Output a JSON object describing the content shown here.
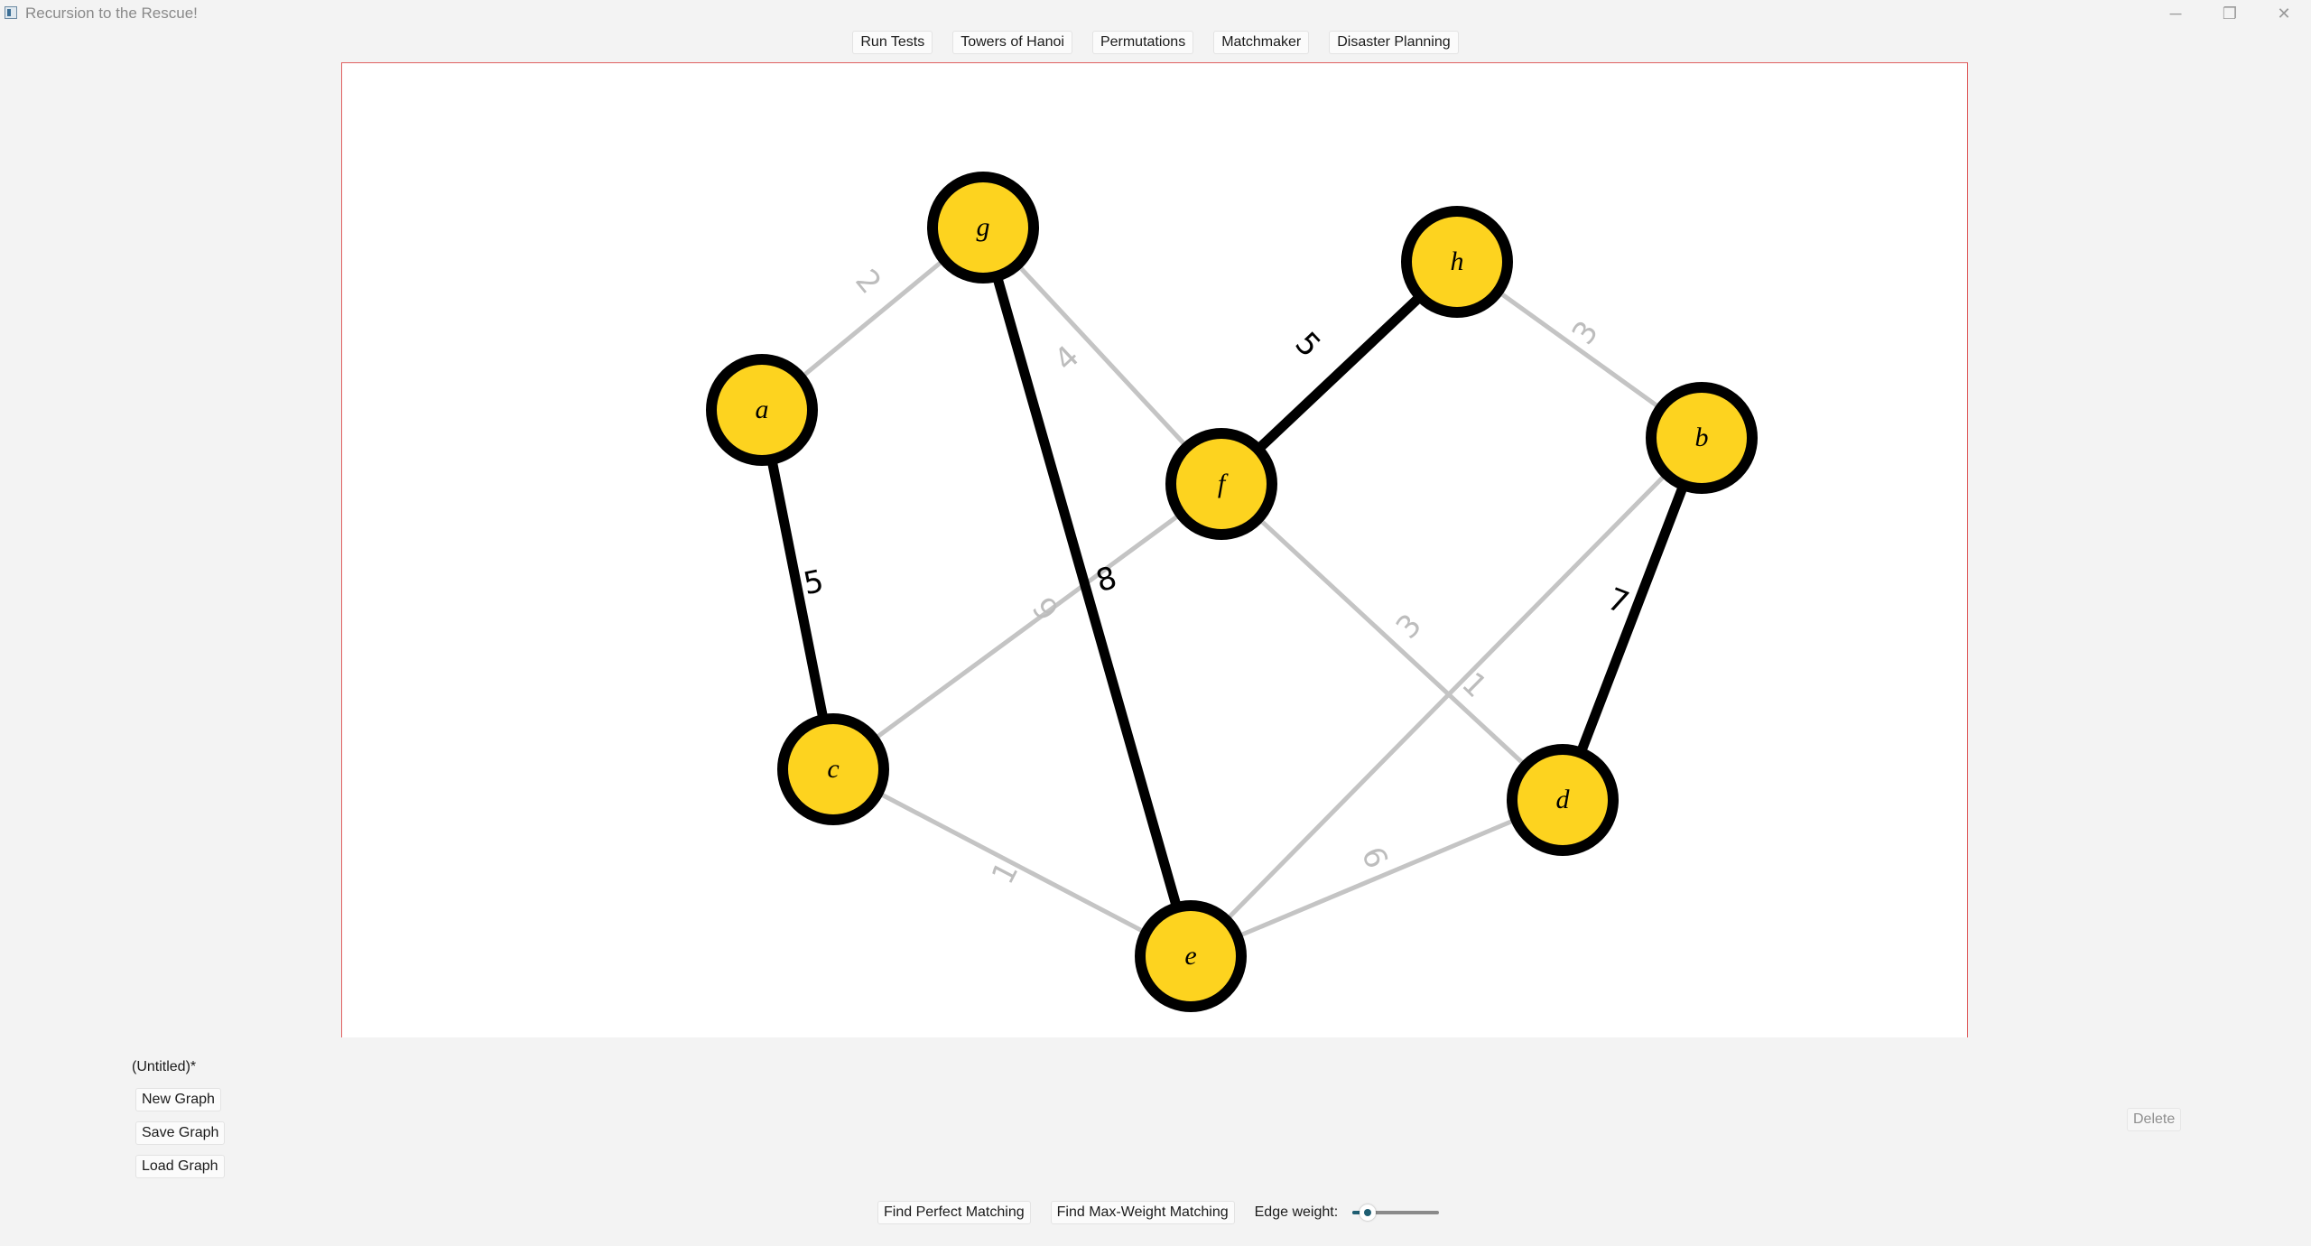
{
  "window": {
    "title": "Recursion to the Rescue!",
    "controls": {
      "minimize": "─",
      "restore": "❐",
      "close": "✕"
    }
  },
  "nav": {
    "tabs": [
      "Run Tests",
      "Towers of Hanoi",
      "Permutations",
      "Matchmaker",
      "Disaster Planning"
    ]
  },
  "graph": {
    "colors": {
      "node_fill": "#fdd31f",
      "node_stroke": "#000000",
      "edge_selected": "#000000",
      "edge_default": "#c4c4c4",
      "label_default": "#bdbdbd"
    },
    "nodes": [
      {
        "id": "a"
      },
      {
        "id": "b"
      },
      {
        "id": "c"
      },
      {
        "id": "d"
      },
      {
        "id": "e"
      },
      {
        "id": "f"
      },
      {
        "id": "g"
      },
      {
        "id": "h"
      }
    ],
    "edges": [
      {
        "from": "a",
        "to": "g",
        "weight": "2",
        "selected": false
      },
      {
        "from": "g",
        "to": "f",
        "weight": "4",
        "selected": false
      },
      {
        "from": "h",
        "to": "b",
        "weight": "3",
        "selected": false
      },
      {
        "from": "c",
        "to": "f",
        "weight": "9",
        "selected": false
      },
      {
        "from": "f",
        "to": "d",
        "weight": "3",
        "selected": false
      },
      {
        "from": "e",
        "to": "b",
        "weight": "1",
        "selected": false
      },
      {
        "from": "c",
        "to": "e",
        "weight": "1",
        "selected": false
      },
      {
        "from": "e",
        "to": "d",
        "weight": "6",
        "selected": false
      },
      {
        "from": "a",
        "to": "c",
        "weight": "5",
        "selected": true
      },
      {
        "from": "g",
        "to": "e",
        "weight": "8",
        "selected": true
      },
      {
        "from": "f",
        "to": "h",
        "weight": "5",
        "selected": true
      },
      {
        "from": "b",
        "to": "d",
        "weight": "7",
        "selected": true
      }
    ]
  },
  "file": {
    "name": "(Untitled)*",
    "new_label": "New Graph",
    "save_label": "Save Graph",
    "load_label": "Load Graph"
  },
  "delete_label": "Delete",
  "actions": {
    "perfect_label": "Find Perfect Matching",
    "maxweight_label": "Find Max-Weight Matching",
    "weight_label": "Edge weight:",
    "weight_value": 0.18
  }
}
